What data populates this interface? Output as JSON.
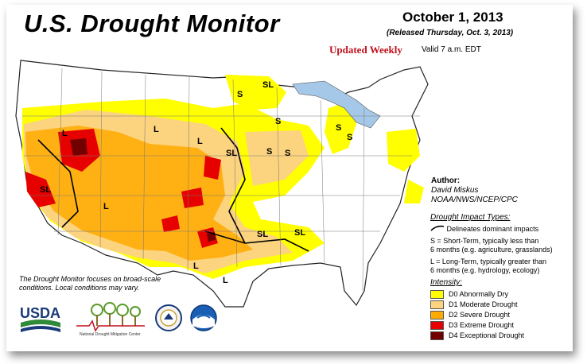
{
  "header": {
    "title": "U.S. Drought Monitor",
    "date": "October 1, 2013",
    "released": "(Released Thursday, Oct. 3, 2013)",
    "updated": "Updated Weekly",
    "valid": "Valid 7 a.m. EDT"
  },
  "author": {
    "title": "Author:",
    "name": "David Miskus",
    "org": "NOAA/NWS/NCEP/CPC"
  },
  "impact": {
    "title": "Drought Impact Types:",
    "delineates": "Delineates dominant impacts",
    "short_1": "S = Short-Term, typically less than",
    "short_2": "6 months (e.g. agriculture, grasslands)",
    "long_1": "L = Long-Term, typically greater than",
    "long_2": "6 months (e.g. hydrology, ecology)"
  },
  "intensity": {
    "title": "Intensity:",
    "items": [
      {
        "label": "D0 Abnormally Dry",
        "color": "#ffff00"
      },
      {
        "label": "D1 Moderate Drought",
        "color": "#fcd37f"
      },
      {
        "label": "D2 Severe Drought",
        "color": "#ffaa00"
      },
      {
        "label": "D3 Extreme Drought",
        "color": "#e60000"
      },
      {
        "label": "D4 Exceptional Drought",
        "color": "#730000"
      }
    ]
  },
  "note": "The Drought Monitor focuses on broad-scale conditions. Local conditions may vary.",
  "logos": {
    "usda": "USDA",
    "ndmc": "National Drought Mitigation Center"
  },
  "map_labels": [
    "L",
    "L",
    "L",
    "SL",
    "L",
    "S",
    "SL",
    "S",
    "S",
    "SL",
    "S",
    "SL",
    "SL",
    "L",
    "L",
    "S",
    "S"
  ]
}
